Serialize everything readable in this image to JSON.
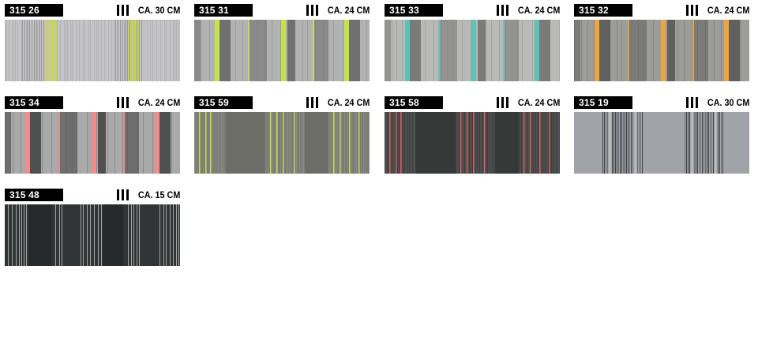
{
  "swatches": [
    {
      "code": "315 26",
      "repeat": "CA. 30 CM",
      "colors": {
        "base": "#c4c4c6",
        "line": "#a8a8aa",
        "dark": "#8f8f91",
        "accent": "#c9d83a"
      },
      "pattern": "fine-accent-pairs"
    },
    {
      "code": "315 31",
      "repeat": "CA. 24 CM",
      "colors": {
        "base": "#b2b2b2",
        "mid": "#8a8a8a",
        "dark": "#6f706f",
        "accent": "#c6e24a"
      },
      "pattern": "blocks-accent"
    },
    {
      "code": "315 33",
      "repeat": "CA. 24 CM",
      "colors": {
        "base": "#b9b9b7",
        "mid": "#939391",
        "dark": "#7a7a78",
        "accent": "#5cc4b6"
      },
      "pattern": "blocks-accent"
    },
    {
      "code": "315 32",
      "repeat": "CA. 24 CM",
      "colors": {
        "base": "#9c9c9a",
        "mid": "#7b7b7a",
        "dark": "#5f605f",
        "accent": "#f0a43e"
      },
      "pattern": "blocks-accent"
    },
    {
      "code": "315 34",
      "repeat": "CA. 24 CM",
      "colors": {
        "base": "#a9a9a9",
        "mid": "#6e6e6e",
        "dark": "#4f5050",
        "accent": "#ef8c8c"
      },
      "pattern": "blocks-accent"
    },
    {
      "code": "315 59",
      "repeat": "CA. 24 CM",
      "colors": {
        "base": "#7b7c76",
        "mid": "#8c8d86",
        "dark": "#65665f",
        "accent": "#c2dc4a"
      },
      "pattern": "dense-accent"
    },
    {
      "code": "315 58",
      "repeat": "CA. 24 CM",
      "colors": {
        "base": "#4d4f4f",
        "mid": "#3b3d3d",
        "dark": "#2e3030",
        "accent": "#e05a5a"
      },
      "pattern": "dense-accent"
    },
    {
      "code": "315 19",
      "repeat": "CA. 30 CM",
      "colors": {
        "base": "#a0a3a7",
        "mid": "#6d7074",
        "dark": "#3f4246",
        "accent": "#c8c9cb"
      },
      "pattern": "dark-clusters"
    },
    {
      "code": "315 48",
      "repeat": "CA. 15 CM",
      "colors": {
        "base": "#313535",
        "mid": "#3d4242",
        "dark": "#262a2a",
        "accent": "#d6d6d2"
      },
      "pattern": "dark-white-lines"
    }
  ]
}
